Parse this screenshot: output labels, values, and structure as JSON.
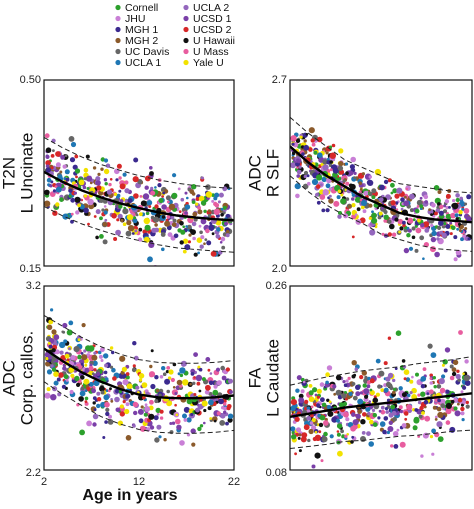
{
  "legend": [
    {
      "name": "Cornell",
      "color": "#2ca02c"
    },
    {
      "name": "UCLA 2",
      "color": "#9467bd"
    },
    {
      "name": "JHU",
      "color": "#c97fd6"
    },
    {
      "name": "UCSD 1",
      "color": "#7a3fa8"
    },
    {
      "name": "MGH 1",
      "color": "#3b2a8f"
    },
    {
      "name": "UCSD 2",
      "color": "#d62728"
    },
    {
      "name": "MGH 2",
      "color": "#8b5a2b"
    },
    {
      "name": "U Hawaii",
      "color": "#111111"
    },
    {
      "name": "UC Davis",
      "color": "#666666"
    },
    {
      "name": "U Mass",
      "color": "#e85d9f"
    },
    {
      "name": "UCLA 1",
      "color": "#1f77b4"
    },
    {
      "name": "Yale U",
      "color": "#f2e200"
    }
  ],
  "xlabel": "Age in years",
  "chart_data": [
    {
      "type": "scatter",
      "ylabel": [
        "T2N",
        "L Uncinate"
      ],
      "xlim": [
        2,
        22
      ],
      "ylim": [
        0.15,
        0.5
      ],
      "yticks": [
        "0.50",
        "0.15"
      ],
      "xticks": [],
      "fit": {
        "x": [
          2,
          4,
          6,
          8,
          10,
          12,
          14,
          16,
          18,
          20,
          22
        ],
        "y": [
          0.327,
          0.308,
          0.292,
          0.279,
          0.268,
          0.259,
          0.251,
          0.245,
          0.241,
          0.238,
          0.236
        ]
      },
      "band_upper": [
        0.392,
        0.372,
        0.355,
        0.341,
        0.33,
        0.32,
        0.312,
        0.306,
        0.301,
        0.298,
        0.296
      ],
      "band_lower": [
        0.262,
        0.244,
        0.229,
        0.217,
        0.206,
        0.198,
        0.19,
        0.184,
        0.181,
        0.178,
        0.176
      ]
    },
    {
      "type": "scatter",
      "ylabel": [
        "ADC",
        "R SLF"
      ],
      "xlim": [
        2,
        22
      ],
      "ylim": [
        2.0,
        2.7
      ],
      "yticks": [
        "2.7",
        "2.0"
      ],
      "xticks": [],
      "fit": {
        "x": [
          2,
          4,
          6,
          8,
          10,
          12,
          14,
          16,
          18,
          20,
          22
        ],
        "y": [
          2.45,
          2.39,
          2.34,
          2.3,
          2.26,
          2.23,
          2.2,
          2.185,
          2.175,
          2.17,
          2.165
        ]
      },
      "band_upper": [
        2.56,
        2.5,
        2.45,
        2.4,
        2.37,
        2.34,
        2.31,
        2.3,
        2.29,
        2.28,
        2.275
      ],
      "band_lower": [
        2.34,
        2.28,
        2.23,
        2.19,
        2.16,
        2.12,
        2.1,
        2.08,
        2.065,
        2.06,
        2.055
      ]
    },
    {
      "type": "scatter",
      "ylabel": [
        "ADC",
        "Corp. callos."
      ],
      "xlim": [
        2,
        22
      ],
      "ylim": [
        2.2,
        3.2
      ],
      "yticks": [
        "3.2",
        "2.2"
      ],
      "xticks": [
        "2",
        "12",
        "22"
      ],
      "fit": {
        "x": [
          2,
          4,
          6,
          8,
          10,
          12,
          14,
          16,
          18,
          20,
          22
        ],
        "y": [
          2.86,
          2.79,
          2.73,
          2.68,
          2.64,
          2.61,
          2.595,
          2.59,
          2.59,
          2.595,
          2.605
        ]
      },
      "band_upper": [
        3.04,
        2.98,
        2.92,
        2.87,
        2.83,
        2.8,
        2.785,
        2.78,
        2.78,
        2.785,
        2.795
      ],
      "band_lower": [
        2.68,
        2.61,
        2.55,
        2.49,
        2.45,
        2.42,
        2.405,
        2.4,
        2.4,
        2.405,
        2.415
      ]
    },
    {
      "type": "scatter",
      "ylabel": [
        "FA",
        "L Caudate"
      ],
      "xlim": [
        2,
        22
      ],
      "ylim": [
        0.08,
        0.26
      ],
      "yticks": [
        "0.26",
        "0.08"
      ],
      "xticks": [],
      "fit": {
        "x": [
          2,
          4,
          6,
          8,
          10,
          12,
          14,
          16,
          18,
          20,
          22
        ],
        "y": [
          0.132,
          0.135,
          0.138,
          0.141,
          0.143,
          0.145,
          0.147,
          0.149,
          0.151,
          0.153,
          0.155
        ]
      },
      "band_upper": [
        0.163,
        0.167,
        0.171,
        0.174,
        0.177,
        0.179,
        0.181,
        0.184,
        0.186,
        0.188,
        0.191
      ],
      "band_lower": [
        0.101,
        0.103,
        0.105,
        0.108,
        0.109,
        0.111,
        0.113,
        0.114,
        0.116,
        0.118,
        0.119
      ]
    }
  ]
}
